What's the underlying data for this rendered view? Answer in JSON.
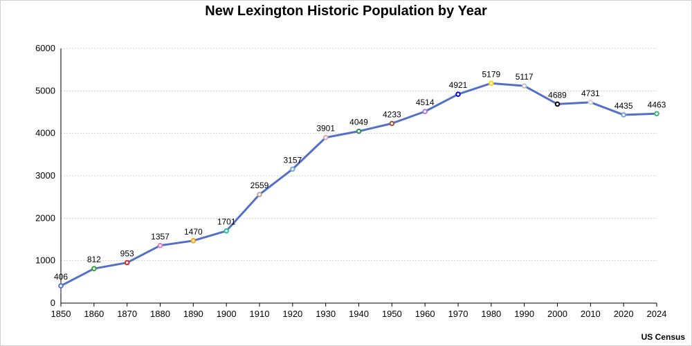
{
  "chart_data": {
    "type": "line",
    "title": "New Lexington Historic Population by Year",
    "xlabel": "",
    "ylabel": "",
    "source": "US Census",
    "categories": [
      "1850",
      "1860",
      "1870",
      "1880",
      "1890",
      "1900",
      "1910",
      "1920",
      "1930",
      "1940",
      "1950",
      "1960",
      "1970",
      "1980",
      "1990",
      "2000",
      "2010",
      "2020",
      "2024"
    ],
    "series": [
      {
        "name": "Population",
        "color": "#5470c6",
        "values": [
          406,
          812,
          953,
          1357,
          1470,
          1701,
          2559,
          3157,
          3901,
          4049,
          4233,
          4514,
          4921,
          5179,
          5117,
          4689,
          4731,
          4435,
          4463
        ]
      }
    ],
    "marker_colors": [
      "#5470c6",
      "#2ca02c",
      "#d62728",
      "#e377c2",
      "#ff9f00",
      "#20c0a0",
      "#bca0a0",
      "#6fa8dc",
      "#e8a0b0",
      "#2e8b57",
      "#a0522d",
      "#b07cd8",
      "#0000cc",
      "#ffd700",
      "#c0c0c0",
      "#000000",
      "#d3d3d3",
      "#7b9ee0",
      "#3cb371"
    ],
    "ylim": [
      0,
      6000
    ],
    "yticks": [
      0,
      1000,
      2000,
      3000,
      4000,
      5000,
      6000
    ],
    "grid": true,
    "legend": "none"
  }
}
